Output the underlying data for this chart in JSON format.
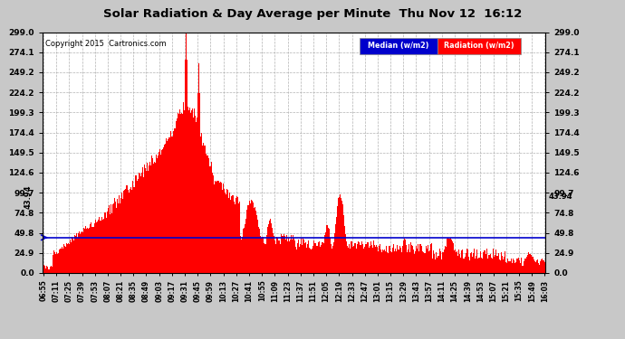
{
  "title": "Solar Radiation & Day Average per Minute  Thu Nov 12  16:12",
  "copyright_text": "Copyright 2015  Cartronics.com",
  "median_value": 43.94,
  "y_max": 299.0,
  "y_ticks": [
    0.0,
    24.9,
    49.8,
    74.8,
    99.7,
    124.6,
    149.5,
    174.4,
    199.3,
    224.2,
    249.2,
    274.1,
    299.0
  ],
  "background_color": "#c8c8c8",
  "plot_bg_color": "#ffffff",
  "bar_color": "#ff0000",
  "median_color": "#0000cc",
  "grid_color": "#aaaaaa",
  "legend_median_bg": "#0000cc",
  "legend_radiation_bg": "#ff0000",
  "x_tick_labels": [
    "06:55",
    "07:11",
    "07:25",
    "07:39",
    "07:53",
    "08:07",
    "08:21",
    "08:35",
    "08:49",
    "09:03",
    "09:17",
    "09:31",
    "09:45",
    "09:59",
    "10:13",
    "10:27",
    "10:41",
    "10:55",
    "11:09",
    "11:23",
    "11:37",
    "11:51",
    "12:05",
    "12:19",
    "12:33",
    "12:47",
    "13:01",
    "13:15",
    "13:29",
    "13:43",
    "13:57",
    "14:11",
    "14:25",
    "14:39",
    "14:53",
    "15:07",
    "15:21",
    "15:35",
    "15:49",
    "16:03"
  ],
  "n_minutes": 548
}
